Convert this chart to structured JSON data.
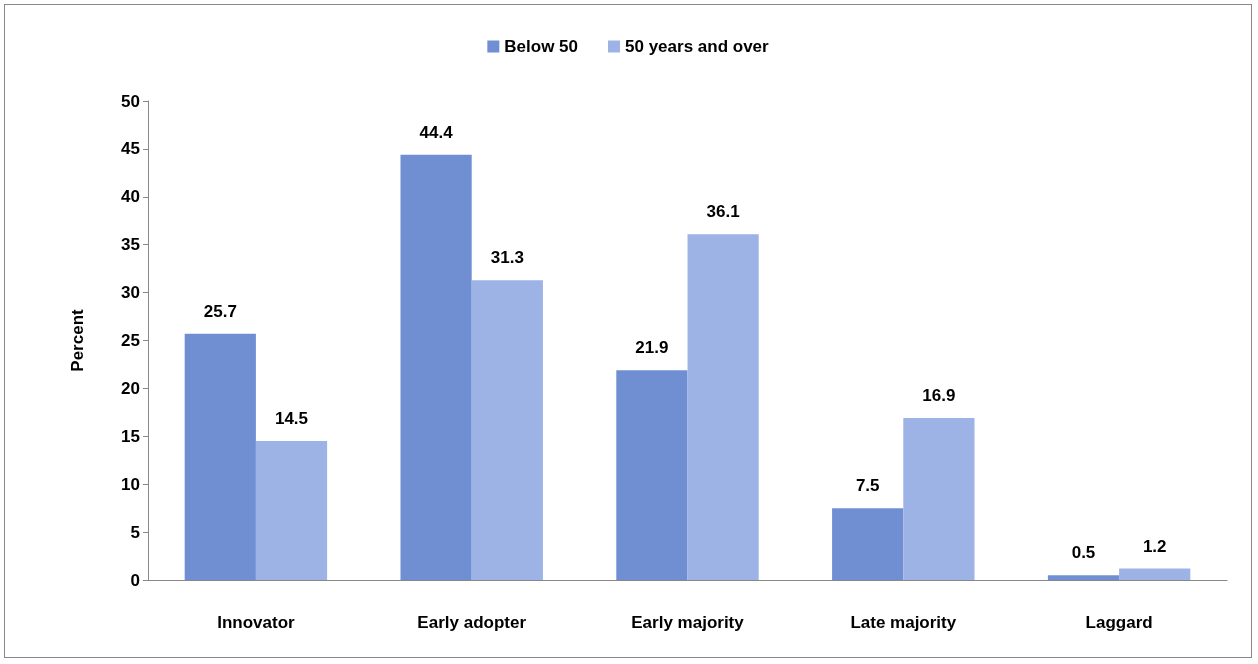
{
  "chart_data": {
    "type": "bar",
    "ylabel": "Percent",
    "categories": [
      "Innovator",
      "Early adopter",
      "Early majority",
      "Late majority",
      "Laggard"
    ],
    "series": [
      {
        "name": "Below 50",
        "color": "#6f8fd2",
        "values": [
          25.7,
          44.4,
          21.9,
          7.5,
          0.5
        ]
      },
      {
        "name": "50 years and over",
        "color": "#9db3e6",
        "values": [
          14.5,
          31.3,
          36.1,
          16.9,
          1.2
        ]
      }
    ],
    "ylim": [
      0,
      50
    ],
    "yticks": [
      0,
      5,
      10,
      15,
      20,
      25,
      30,
      35,
      40,
      45,
      50
    ],
    "grid": false,
    "legend": "top",
    "data_labels": true
  }
}
